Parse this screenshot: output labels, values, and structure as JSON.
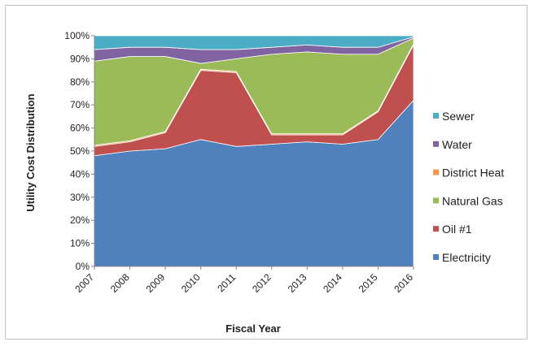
{
  "chart_data": {
    "type": "area",
    "stacked": true,
    "normalized": true,
    "xlabel": "Fiscal Year",
    "ylabel": "Utility Cost Distribution",
    "x": [
      "2007",
      "2008",
      "2009",
      "2010",
      "2011",
      "2012",
      "2013",
      "2014",
      "2015",
      "2016"
    ],
    "ylim": [
      0,
      100
    ],
    "yticks": [
      "0%",
      "10%",
      "20%",
      "30%",
      "40%",
      "50%",
      "60%",
      "70%",
      "80%",
      "90%",
      "100%"
    ],
    "legend_position": "right",
    "grid": false,
    "series": [
      {
        "name": "Electricity",
        "color": "#4f81bd",
        "values": [
          48,
          50,
          51,
          55,
          52,
          53,
          54,
          53,
          55,
          72
        ]
      },
      {
        "name": "Oil #1",
        "color": "#c0504d",
        "values": [
          4,
          4,
          7,
          30,
          32,
          4,
          3,
          4,
          12,
          24
        ]
      },
      {
        "name": "District Heat",
        "color": "#f79646",
        "values": [
          0.5,
          0.5,
          0.5,
          0.5,
          0.5,
          0.5,
          0.5,
          0.5,
          0.5,
          0.5
        ]
      },
      {
        "name": "Natural Gas",
        "color": "#9bbb59",
        "values": [
          36.5,
          36.5,
          32.5,
          2.5,
          5.5,
          34.5,
          35.5,
          34.5,
          24.5,
          2.5
        ]
      },
      {
        "name": "Water",
        "color": "#8064a2",
        "values": [
          5,
          4,
          4,
          6,
          4,
          3,
          3,
          3,
          3,
          0.5
        ]
      },
      {
        "name": "Sewer",
        "color": "#4bacc6",
        "values": [
          6,
          5,
          5,
          6,
          6,
          5,
          4,
          5,
          5,
          0.5
        ]
      }
    ],
    "legend_order": [
      "Sewer",
      "Water",
      "District Heat",
      "Natural Gas",
      "Oil #1",
      "Electricity"
    ]
  }
}
